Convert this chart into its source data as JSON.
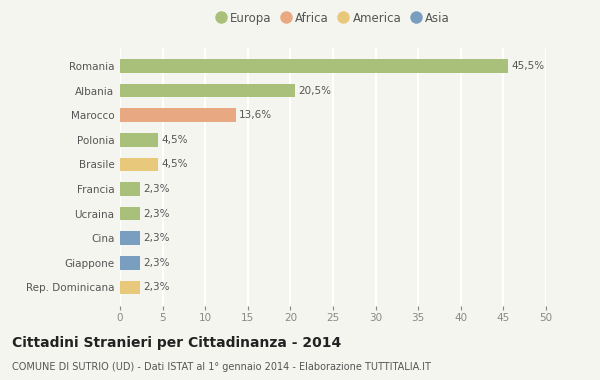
{
  "countries": [
    "Romania",
    "Albania",
    "Marocco",
    "Polonia",
    "Brasile",
    "Francia",
    "Ucraina",
    "Cina",
    "Giappone",
    "Rep. Dominicana"
  ],
  "values": [
    45.5,
    20.5,
    13.6,
    4.5,
    4.5,
    2.3,
    2.3,
    2.3,
    2.3,
    2.3
  ],
  "labels": [
    "45,5%",
    "20,5%",
    "13,6%",
    "4,5%",
    "4,5%",
    "2,3%",
    "2,3%",
    "2,3%",
    "2,3%",
    "2,3%"
  ],
  "continents": [
    "Europa",
    "Europa",
    "Africa",
    "Europa",
    "America",
    "Europa",
    "Europa",
    "Asia",
    "Asia",
    "America"
  ],
  "colors": {
    "Europa": "#a8c07a",
    "Africa": "#e8a882",
    "America": "#e8c87a",
    "Asia": "#7a9ec0"
  },
  "legend_order": [
    "Europa",
    "Africa",
    "America",
    "Asia"
  ],
  "xlim": [
    0,
    50
  ],
  "xticks": [
    0,
    5,
    10,
    15,
    20,
    25,
    30,
    35,
    40,
    45,
    50
  ],
  "title": "Cittadini Stranieri per Cittadinanza - 2014",
  "subtitle": "COMUNE DI SUTRIO (UD) - Dati ISTAT al 1° gennaio 2014 - Elaborazione TUTTITALIA.IT",
  "bg_color": "#f5f5f0",
  "grid_color": "#ffffff",
  "bar_height": 0.55,
  "title_fontsize": 10,
  "subtitle_fontsize": 7,
  "label_fontsize": 7.5,
  "ytick_fontsize": 7.5,
  "legend_fontsize": 8.5
}
